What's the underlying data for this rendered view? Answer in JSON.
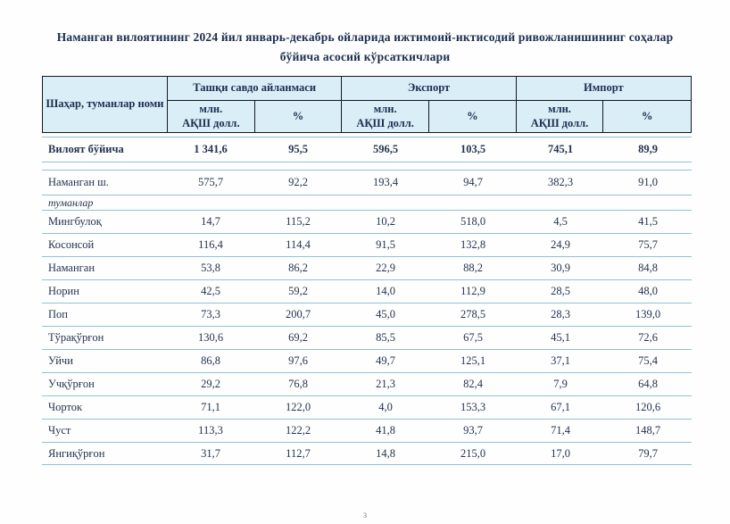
{
  "title": "Наманган вилоятининг 2024 йил январь-декабрь ойларида ижтимоий-иктисодий ривожланишининг соҳалар бўйича асосий кўрсаткичлари",
  "colors": {
    "header_bg": "#d9eef7",
    "header_border": "#141821",
    "row_line": "#8fc3d2",
    "text": "#1b2d4f"
  },
  "table": {
    "name_header": "Шаҳар, туманлар номи",
    "groups": [
      {
        "label": "Ташқи савдо айланмаси"
      },
      {
        "label": "Экспорт"
      },
      {
        "label": "Импорт"
      }
    ],
    "subheader": {
      "amount_line1": "млн.",
      "amount_line2": "АҚШ долл.",
      "percent": "%"
    }
  },
  "rows": [
    {
      "type": "total",
      "name": "Вилоят бўйича",
      "values": [
        "1 341,6",
        "95,5",
        "596,5",
        "103,5",
        "745,1",
        "89,9"
      ]
    },
    {
      "type": "spacer",
      "name": "",
      "values": []
    },
    {
      "type": "city",
      "name": "Наманган ш.",
      "values": [
        "575,7",
        "92,2",
        "193,4",
        "94,7",
        "382,3",
        "91,0"
      ]
    },
    {
      "type": "section",
      "name": "туманлар",
      "values": []
    },
    {
      "type": "district",
      "name": "Мингбулоқ",
      "values": [
        "14,7",
        "115,2",
        "10,2",
        "518,0",
        "4,5",
        "41,5"
      ]
    },
    {
      "type": "district",
      "name": "Косонсой",
      "values": [
        "116,4",
        "114,4",
        "91,5",
        "132,8",
        "24,9",
        "75,7"
      ]
    },
    {
      "type": "district",
      "name": "Наманган",
      "values": [
        "53,8",
        "86,2",
        "22,9",
        "88,2",
        "30,9",
        "84,8"
      ]
    },
    {
      "type": "district",
      "name": "Норин",
      "values": [
        "42,5",
        "59,2",
        "14,0",
        "112,9",
        "28,5",
        "48,0"
      ]
    },
    {
      "type": "district",
      "name": "Поп",
      "values": [
        "73,3",
        "200,7",
        "45,0",
        "278,5",
        "28,3",
        "139,0"
      ]
    },
    {
      "type": "district",
      "name": "Тўрақўрғон",
      "values": [
        "130,6",
        "69,2",
        "85,5",
        "67,5",
        "45,1",
        "72,6"
      ]
    },
    {
      "type": "district",
      "name": "Уйчи",
      "values": [
        "86,8",
        "97,6",
        "49,7",
        "125,1",
        "37,1",
        "75,4"
      ]
    },
    {
      "type": "district",
      "name": "Учқўрғон",
      "values": [
        "29,2",
        "76,8",
        "21,3",
        "82,4",
        "7,9",
        "64,8"
      ]
    },
    {
      "type": "district",
      "name": "Чорток",
      "values": [
        "71,1",
        "122,0",
        "4,0",
        "153,3",
        "67,1",
        "120,6"
      ]
    },
    {
      "type": "district",
      "name": "Чуст",
      "values": [
        "113,3",
        "122,2",
        "41,8",
        "93,7",
        "71,4",
        "148,7"
      ]
    },
    {
      "type": "district",
      "name": "Янгиқўрғон",
      "values": [
        "31,7",
        "112,7",
        "14,8",
        "215,0",
        "17,0",
        "79,7"
      ]
    }
  ],
  "page_number": "3"
}
